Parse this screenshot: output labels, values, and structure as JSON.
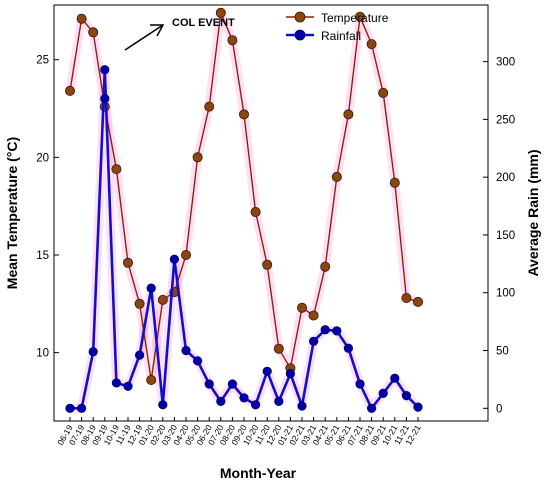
{
  "chart_data": {
    "type": "line",
    "title": "",
    "xlabel": "Month-Year",
    "ylabel_left": "Mean Temperature (°C)",
    "ylabel_right": "Average Rain (mm)",
    "y_left_ticks": [
      10,
      15,
      20,
      25
    ],
    "y_left_range": [
      6.5,
      27.8
    ],
    "y_right_ticks": [
      0,
      50,
      100,
      150,
      200,
      250,
      300
    ],
    "y_right_range": [
      -11,
      349
    ],
    "grid": false,
    "legend_position": "top-right",
    "categories": [
      "06-19",
      "07-19",
      "08-19",
      "09-19",
      "10-19",
      "11-19",
      "12-19",
      "01-20",
      "02-20",
      "03-20",
      "04-20",
      "05-20",
      "06-20",
      "07-20",
      "08-20",
      "09-20",
      "10-20",
      "11-20",
      "12-20",
      "01-21",
      "02-21",
      "03-21",
      "04-21",
      "05-21",
      "06-21",
      "07-21",
      "08-21",
      "09-21",
      "10-21",
      "11-21",
      "12-21"
    ],
    "series": [
      {
        "name": "Temperature",
        "axis": "left",
        "color": "#8B2500",
        "marker_color": "#8B4513",
        "values": [
          23.4,
          27.1,
          26.4,
          22.6,
          19.4,
          14.6,
          12.5,
          8.6,
          12.7,
          13.1,
          15.0,
          20.0,
          22.6,
          27.4,
          26.0,
          22.2,
          17.2,
          14.5,
          10.2,
          9.2,
          12.3,
          11.9,
          14.4,
          19.0,
          22.2,
          27.2,
          25.8,
          23.3,
          18.7,
          12.8,
          12.6
        ]
      },
      {
        "name": "Rainfall",
        "axis": "right",
        "color": "#1010C8",
        "marker_color": "#0000AA",
        "values": [
          0,
          0,
          49,
          293,
          22,
          19,
          46,
          104,
          3,
          129,
          50,
          41,
          21,
          6,
          21,
          9,
          3,
          32,
          6,
          30,
          2,
          58,
          68,
          67,
          52,
          21,
          0,
          13,
          26,
          11,
          1
        ]
      }
    ],
    "extra_markers": [
      {
        "series": "Rainfall",
        "x_index": 3,
        "value": 268
      }
    ],
    "annotations": [
      {
        "text": "COL EVENT"
      }
    ]
  }
}
